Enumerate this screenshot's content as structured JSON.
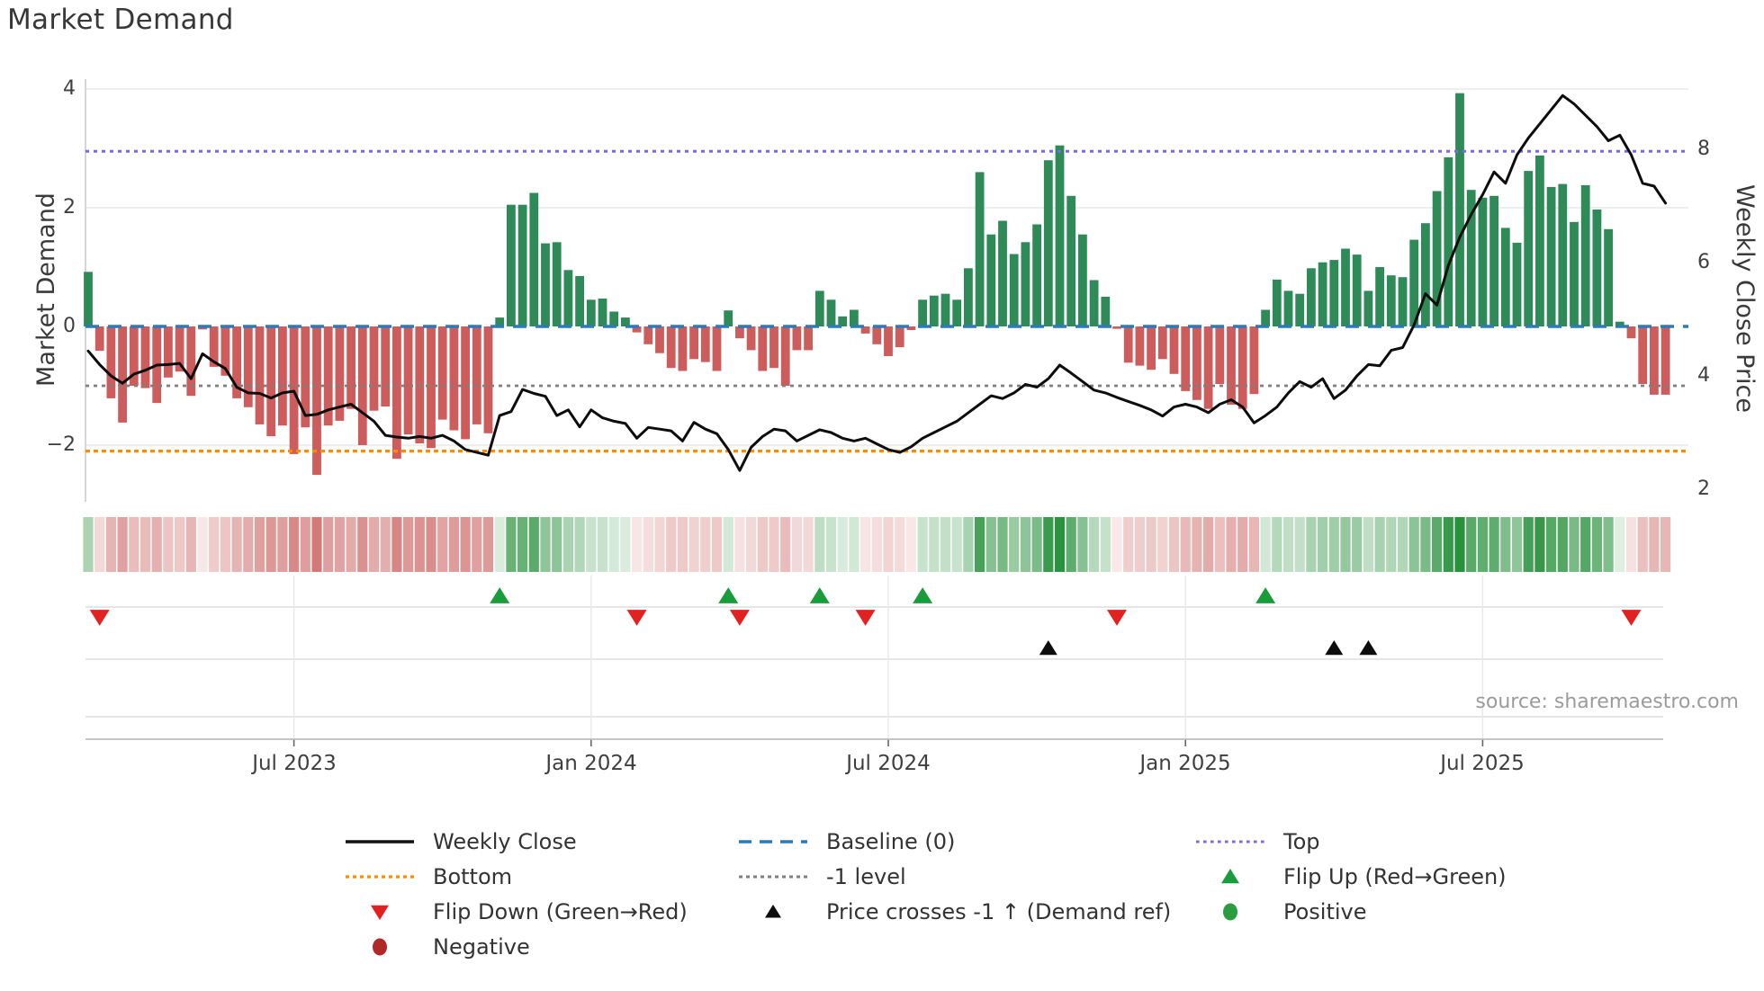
{
  "title": "Market Demand",
  "source": "source: sharemaestro.com",
  "axes": {
    "left_label": "Market Demand",
    "right_label": "Weekly Close Price",
    "left_ticks": [
      {
        "label": "4",
        "value": 4
      },
      {
        "label": "2",
        "value": 2
      },
      {
        "label": "0",
        "value": 0
      },
      {
        "label": "−2",
        "value": -2
      }
    ],
    "right_ticks": [
      {
        "label": "8",
        "value": 8
      },
      {
        "label": "6",
        "value": 6
      },
      {
        "label": "4",
        "value": 4
      },
      {
        "label": "2",
        "value": 2
      }
    ],
    "x_ticks": [
      {
        "label": "Jul 2023",
        "week_index": 18
      },
      {
        "label": "Jan 2024",
        "week_index": 44
      },
      {
        "label": "Jul 2024",
        "week_index": 70
      },
      {
        "label": "Jan 2025",
        "week_index": 96
      },
      {
        "label": "Jul 2025",
        "week_index": 122
      }
    ]
  },
  "colors": {
    "positive_bar": "#2e8b57",
    "negative_bar": "#cd5c5c",
    "baseline": "#2b7bba",
    "top": "#7b68ee",
    "bottom": "#ff8c00",
    "minus_one": "#7f7f7f",
    "price_line": "#0d0d0d",
    "flip_up": "#199d3b",
    "flip_down": "#e22220",
    "price_cross": "#0d0d0d",
    "positive_dot": "#2a9d3f",
    "negative_dot": "#b02828",
    "heat_green_base": "#28913c",
    "heat_red_base": "#ca5f5c"
  },
  "chart_data": {
    "type": "combo",
    "components": [
      "bar",
      "line",
      "heatmap",
      "event-markers"
    ],
    "title": "Market Demand",
    "x_axis": "weekly, Mar 2023 → Oct 2025 (tick labels: Jul 2023, Jan 2024, Jul 2024, Jan 2025, Jul 2025)",
    "weeks_count": 139,
    "demand_axis": {
      "label": "Market Demand",
      "ticks": [
        4,
        2,
        0,
        -2
      ],
      "range": [
        -3.05,
        4.15
      ]
    },
    "price_axis": {
      "label": "Weekly Close Price",
      "ticks": [
        8,
        6,
        4,
        2
      ],
      "range": [
        1.75,
        9.2
      ]
    },
    "reference_lines": {
      "baseline": 0,
      "top": 2.95,
      "bottom": -2.1,
      "minus_one": -1
    },
    "series": {
      "demand": [
        0.92,
        -0.41,
        -1.21,
        -1.62,
        -1.0,
        -1.04,
        -1.29,
        -0.86,
        -0.76,
        -1.17,
        -0.05,
        -0.68,
        -0.83,
        -1.21,
        -1.36,
        -1.65,
        -1.85,
        -1.67,
        -2.15,
        -1.7,
        -2.5,
        -1.67,
        -1.59,
        -1.39,
        -2.0,
        -1.42,
        -1.35,
        -2.23,
        -1.82,
        -1.97,
        -2.05,
        -1.57,
        -1.75,
        -1.9,
        -1.65,
        -1.8,
        0.15,
        2.05,
        2.05,
        2.25,
        1.4,
        1.42,
        0.95,
        0.85,
        0.45,
        0.47,
        0.25,
        0.15,
        -0.1,
        -0.3,
        -0.45,
        -0.7,
        -0.75,
        -0.55,
        -0.6,
        -0.75,
        0.27,
        -0.2,
        -0.4,
        -0.75,
        -0.7,
        -1.0,
        -0.4,
        -0.4,
        0.6,
        0.45,
        0.17,
        0.28,
        -0.12,
        -0.3,
        -0.5,
        -0.35,
        -0.06,
        0.45,
        0.52,
        0.55,
        0.45,
        0.98,
        2.6,
        1.55,
        1.78,
        1.22,
        1.42,
        1.72,
        2.8,
        3.05,
        2.2,
        1.55,
        0.78,
        0.5,
        -0.04,
        -0.61,
        -0.66,
        -0.73,
        -0.55,
        -0.8,
        -1.09,
        -1.24,
        -1.39,
        -0.97,
        -1.32,
        -1.39,
        -1.14,
        0.28,
        0.79,
        0.6,
        0.55,
        0.98,
        1.08,
        1.12,
        1.31,
        1.21,
        0.6,
        1.0,
        0.86,
        0.83,
        1.46,
        1.74,
        2.28,
        2.85,
        3.93,
        2.3,
        2.17,
        2.2,
        1.66,
        1.41,
        2.62,
        2.88,
        2.35,
        2.4,
        1.76,
        2.38,
        1.97,
        1.64,
        0.08,
        -0.2,
        -0.97,
        -1.15,
        -1.15
      ],
      "price": [
        4.44,
        4.2,
        4.0,
        3.87,
        4.03,
        4.1,
        4.19,
        4.2,
        4.22,
        3.95,
        4.39,
        4.25,
        4.13,
        3.8,
        3.7,
        3.69,
        3.61,
        3.7,
        3.73,
        3.3,
        3.32,
        3.4,
        3.45,
        3.5,
        3.35,
        3.2,
        2.95,
        2.92,
        2.9,
        2.93,
        2.9,
        2.95,
        2.85,
        2.7,
        2.65,
        2.6,
        3.3,
        3.37,
        3.76,
        3.69,
        3.64,
        3.3,
        3.4,
        3.1,
        3.4,
        3.26,
        3.2,
        3.16,
        2.9,
        3.09,
        3.06,
        3.03,
        2.85,
        3.18,
        3.06,
        2.98,
        2.7,
        2.33,
        2.74,
        2.93,
        3.06,
        3.03,
        2.85,
        2.95,
        3.05,
        3.0,
        2.9,
        2.85,
        2.9,
        2.8,
        2.7,
        2.65,
        2.75,
        2.9,
        3.0,
        3.1,
        3.2,
        3.35,
        3.5,
        3.65,
        3.6,
        3.7,
        3.85,
        3.8,
        3.95,
        4.19,
        4.05,
        3.9,
        3.75,
        3.7,
        3.62,
        3.55,
        3.48,
        3.4,
        3.29,
        3.45,
        3.5,
        3.45,
        3.35,
        3.5,
        3.58,
        3.45,
        3.17,
        3.3,
        3.45,
        3.7,
        3.9,
        3.8,
        3.95,
        3.6,
        3.75,
        4.0,
        4.2,
        4.18,
        4.45,
        4.5,
        4.9,
        5.45,
        5.25,
        5.95,
        6.45,
        6.85,
        7.2,
        7.6,
        7.4,
        7.9,
        8.2,
        8.45,
        8.7,
        8.95,
        8.8,
        8.6,
        8.4,
        8.15,
        8.25,
        7.9,
        7.4,
        7.35,
        7.05
      ]
    },
    "heatmap": {
      "source": "demand",
      "style": "green positive / red negative, intensity proportional to |value|"
    },
    "markers": {
      "flip_up_weeks": [
        36,
        56,
        64,
        73,
        103
      ],
      "flip_down_weeks": [
        1,
        48,
        57,
        68,
        90,
        135
      ],
      "price_cross_weeks": [
        84,
        109,
        112
      ]
    }
  },
  "legend": {
    "items": [
      {
        "label": "Weekly Close",
        "swatch": "line-solid-black"
      },
      {
        "label": "Baseline (0)",
        "swatch": "line-dashed-blue"
      },
      {
        "label": "Top",
        "swatch": "line-dotted-purple"
      },
      {
        "label": "Bottom",
        "swatch": "line-dotted-orange"
      },
      {
        "label": "-1 level",
        "swatch": "line-dotted-gray"
      },
      {
        "label": "Flip Up (Red→Green)",
        "swatch": "triangle-up-green"
      },
      {
        "label": "Flip Down (Green→Red)",
        "swatch": "triangle-down-red"
      },
      {
        "label": "Price crosses -1 ↑ (Demand ref)",
        "swatch": "triangle-up-black"
      },
      {
        "label": "Positive",
        "swatch": "circle-green"
      },
      {
        "label": "Negative",
        "swatch": "circle-darkred"
      }
    ]
  }
}
